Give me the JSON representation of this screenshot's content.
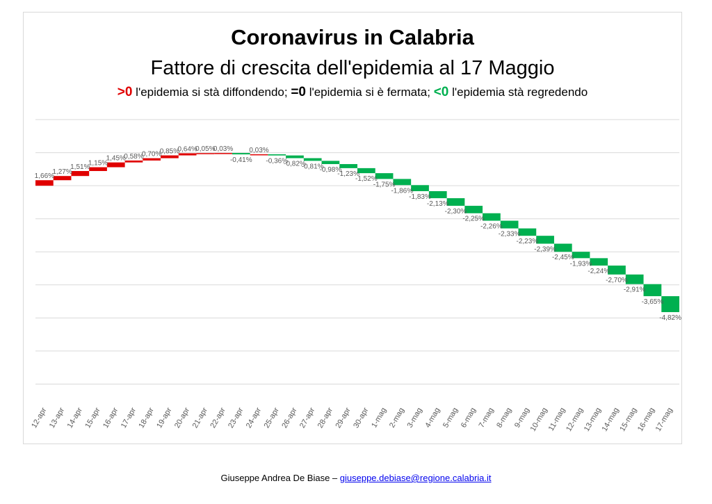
{
  "chart_data": {
    "type": "waterfall",
    "title": "Coronavirus in Calabria",
    "subtitle": "Fattore di crescita dell'epidemia al 17 Maggio",
    "legend": {
      "pos_symbol": ">0",
      "pos_text": " l'epidemia si stà diffondendo; ",
      "zero_symbol": "=0",
      "zero_text": " l'epidemia si è fermata; ",
      "neg_symbol": "<0",
      "neg_text": " l'epidemia stà regredendo"
    },
    "colors": {
      "positive": "#e00000",
      "negative": "#00b050",
      "grid": "#d9d9d9",
      "label": "#595959"
    },
    "categories": [
      "12-apr",
      "13-apr",
      "14-apr",
      "15-apr",
      "16-apr",
      "17-apr",
      "18-apr",
      "19-apr",
      "20-apr",
      "21-apr",
      "22-apr",
      "23-apr",
      "24-apr",
      "25-apr",
      "26-apr",
      "27-apr",
      "28-apr",
      "29-apr",
      "30-apr",
      "1-mag",
      "2-mag",
      "3-mag",
      "4-mag",
      "5-mag",
      "6-mag",
      "7-mag",
      "8-mag",
      "9-mag",
      "10-mag",
      "11-mag",
      "12-mag",
      "13-mag",
      "14-mag",
      "15-mag",
      "16-mag",
      "17-mag"
    ],
    "values": [
      1.66,
      1.27,
      1.51,
      1.15,
      1.45,
      0.58,
      0.7,
      0.85,
      0.64,
      0.05,
      0.03,
      -0.41,
      0.03,
      -0.36,
      -0.82,
      -0.81,
      -0.98,
      -1.23,
      -1.52,
      -1.75,
      -1.86,
      -1.83,
      -2.13,
      -2.3,
      -2.25,
      -2.26,
      -2.33,
      -2.23,
      -2.39,
      -2.45,
      -1.93,
      -2.24,
      -2.7,
      -2.91,
      -3.65,
      -4.82
    ],
    "labels": [
      "1,66%",
      "1,27%",
      "1,51%",
      "1,15%",
      "1,45%",
      "0,58%",
      "0,70%",
      "0,85%",
      "0,64%",
      "0,05%",
      "0,03%",
      "-0,41%",
      "0,03%",
      "-0,36%",
      "-0,82%",
      "-0,81%",
      "-0,98%",
      "-1,23%",
      "-1,52%",
      "-1,75%",
      "-1,86%",
      "-1,83%",
      "-2,13%",
      "-2,30%",
      "-2,25%",
      "-2,26%",
      "-2,33%",
      "-2,23%",
      "-2,39%",
      "-2,45%",
      "-1,93%",
      "-2,24%",
      "-2,70%",
      "-2,91%",
      "-3,65%",
      "-4,82%"
    ],
    "y_axis": {
      "min": -66,
      "max": 24,
      "grid_step": 10,
      "tick_labels_shown": false
    },
    "grid": true
  },
  "footer": {
    "author": "Giuseppe Andrea De Biase – ",
    "email": "giuseppe.debiase@regione.calabria.it"
  }
}
